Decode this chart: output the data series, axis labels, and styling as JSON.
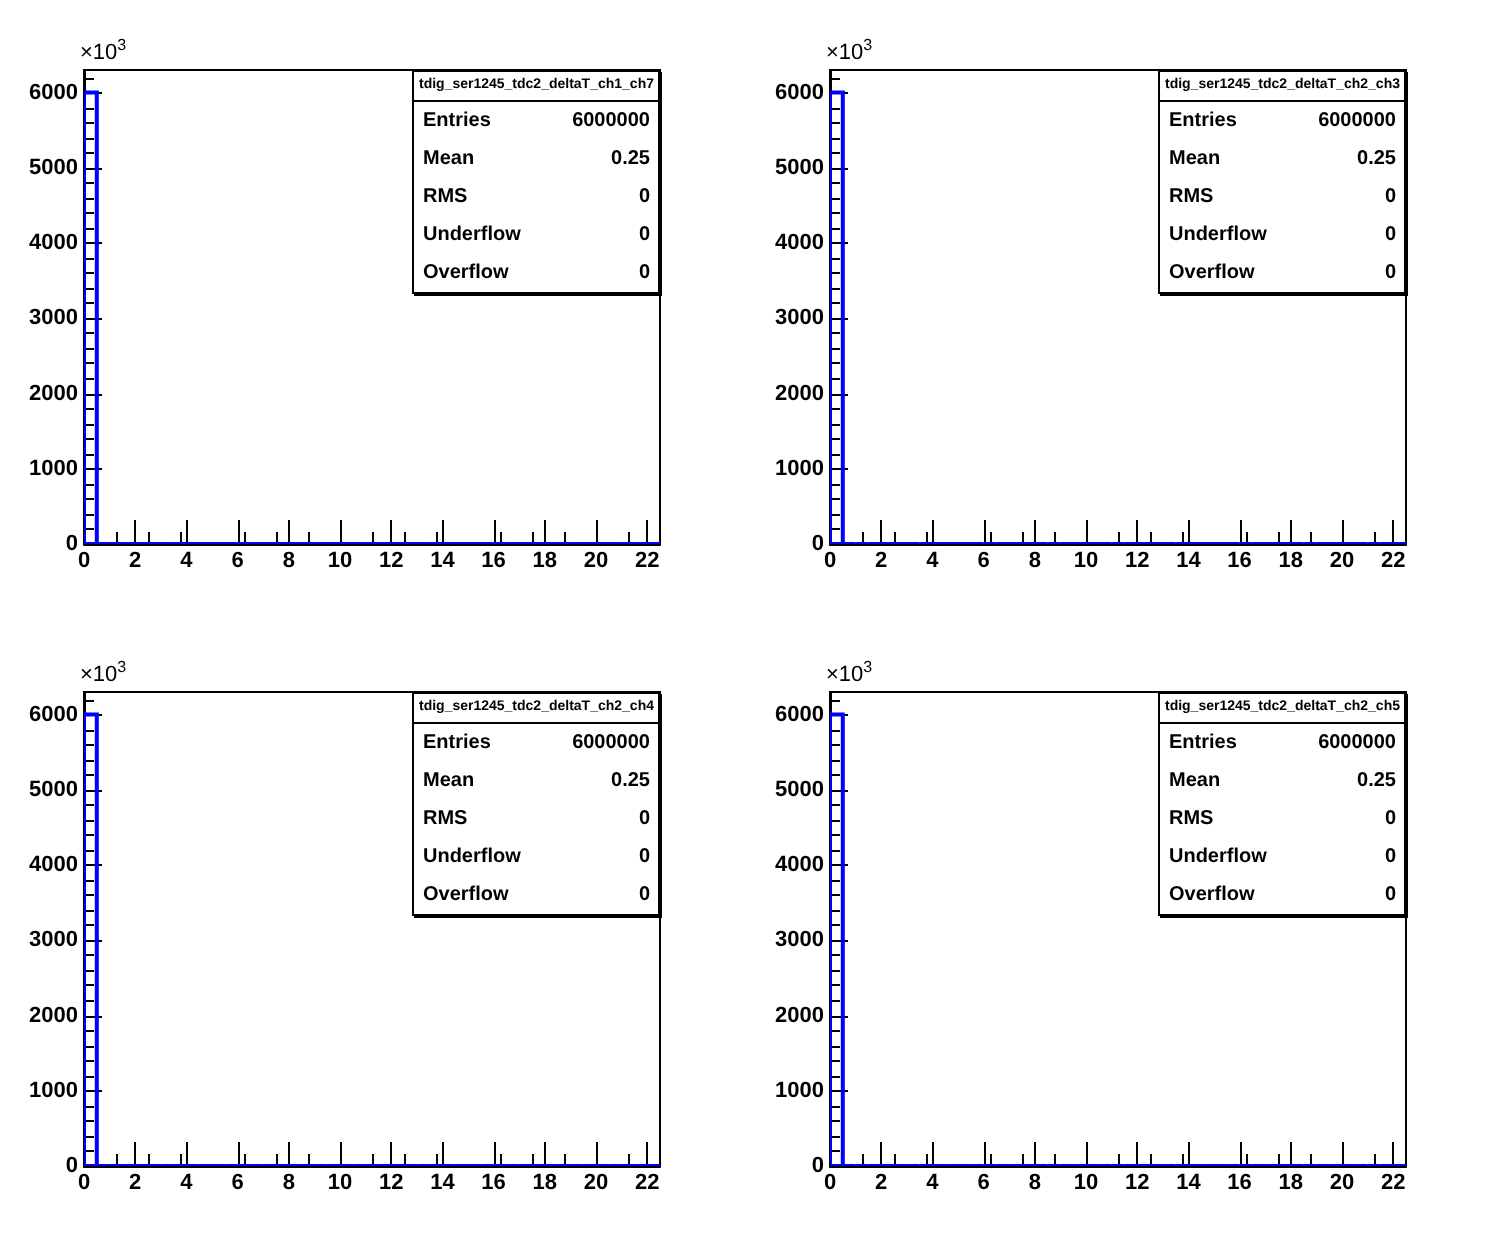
{
  "chart_data": [
    {
      "type": "histogram",
      "title": "tdig_ser1245_tdc2_deltaT_ch1_ch7",
      "annotations": [
        "×10$^{3}$",
        "Entries",
        "6000000",
        "Mean",
        "0.25",
        "RMS",
        "0",
        "Underflow",
        "0",
        "Overflow",
        "0"
      ],
      "bins": [
        0,
        0.5,
        1,
        1.5,
        2,
        2.5,
        3,
        3.5,
        4,
        4.5,
        5,
        5.5,
        6,
        6.5,
        7,
        7.5,
        8,
        8.5,
        9,
        9.5,
        10,
        10.5,
        11,
        11.5,
        12,
        12.5,
        13,
        13.5,
        14,
        14.5,
        15,
        15.5,
        16,
        16.5,
        17,
        17.5,
        18,
        18.5,
        19,
        19.5,
        20,
        20.5,
        21,
        21.5,
        22,
        22.5
      ],
      "values": [
        6000,
        0,
        0,
        0,
        0,
        0,
        0,
        0,
        0,
        0,
        0,
        0,
        0,
        0,
        0,
        0,
        0,
        0,
        0,
        0,
        0,
        0,
        0,
        0,
        0,
        0,
        0,
        0,
        0,
        0,
        0,
        0,
        0,
        0,
        0,
        0,
        0,
        0,
        0,
        0,
        0,
        0,
        0,
        0,
        0
      ],
      "color": "#0000ff",
      "xlim": [
        0,
        22.5
      ],
      "xticks": [
        0,
        2,
        4,
        6,
        8,
        10,
        12,
        14,
        16,
        18,
        20,
        22
      ],
      "ylim": [
        0,
        6300
      ],
      "yticks": [
        0,
        1000,
        2000,
        3000,
        4000,
        5000,
        6000
      ]
    },
    {
      "type": "histogram",
      "title": "tdig_ser1245_tdc2_deltaT_ch2_ch3",
      "annotations": [
        "×10$^{3}$",
        "Entries",
        "6000000",
        "Mean",
        "0.25",
        "RMS",
        "0",
        "Underflow",
        "0",
        "Overflow",
        "0"
      ],
      "bins": [
        0,
        0.5,
        1,
        1.5,
        2,
        2.5,
        3,
        3.5,
        4,
        4.5,
        5,
        5.5,
        6,
        6.5,
        7,
        7.5,
        8,
        8.5,
        9,
        9.5,
        10,
        10.5,
        11,
        11.5,
        12,
        12.5,
        13,
        13.5,
        14,
        14.5,
        15,
        15.5,
        16,
        16.5,
        17,
        17.5,
        18,
        18.5,
        19,
        19.5,
        20,
        20.5,
        21,
        21.5,
        22,
        22.5
      ],
      "values": [
        6000,
        0,
        0,
        0,
        0,
        0,
        0,
        0,
        0,
        0,
        0,
        0,
        0,
        0,
        0,
        0,
        0,
        0,
        0,
        0,
        0,
        0,
        0,
        0,
        0,
        0,
        0,
        0,
        0,
        0,
        0,
        0,
        0,
        0,
        0,
        0,
        0,
        0,
        0,
        0,
        0,
        0,
        0,
        0,
        0
      ],
      "color": "#0000ff",
      "xlim": [
        0,
        22.5
      ],
      "xticks": [
        0,
        2,
        4,
        6,
        8,
        10,
        12,
        14,
        16,
        18,
        20,
        22
      ],
      "ylim": [
        0,
        6300
      ],
      "yticks": [
        0,
        1000,
        2000,
        3000,
        4000,
        5000,
        6000
      ]
    },
    {
      "type": "histogram",
      "title": "tdig_ser1245_tdc2_deltaT_ch2_ch4",
      "annotations": [
        "×10$^{3}$",
        "Entries",
        "6000000",
        "Mean",
        "0.25",
        "RMS",
        "0",
        "Underflow",
        "0",
        "Overflow",
        "0"
      ],
      "bins": [
        0,
        0.5,
        1,
        1.5,
        2,
        2.5,
        3,
        3.5,
        4,
        4.5,
        5,
        5.5,
        6,
        6.5,
        7,
        7.5,
        8,
        8.5,
        9,
        9.5,
        10,
        10.5,
        11,
        11.5,
        12,
        12.5,
        13,
        13.5,
        14,
        14.5,
        15,
        15.5,
        16,
        16.5,
        17,
        17.5,
        18,
        18.5,
        19,
        19.5,
        20,
        20.5,
        21,
        21.5,
        22,
        22.5
      ],
      "values": [
        6000,
        0,
        0,
        0,
        0,
        0,
        0,
        0,
        0,
        0,
        0,
        0,
        0,
        0,
        0,
        0,
        0,
        0,
        0,
        0,
        0,
        0,
        0,
        0,
        0,
        0,
        0,
        0,
        0,
        0,
        0,
        0,
        0,
        0,
        0,
        0,
        0,
        0,
        0,
        0,
        0,
        0,
        0,
        0,
        0
      ],
      "color": "#0000ff",
      "xlim": [
        0,
        22.5
      ],
      "xticks": [
        0,
        2,
        4,
        6,
        8,
        10,
        12,
        14,
        16,
        18,
        20,
        22
      ],
      "ylim": [
        0,
        6300
      ],
      "yticks": [
        0,
        1000,
        2000,
        3000,
        4000,
        5000,
        6000
      ]
    },
    {
      "type": "histogram",
      "title": "tdig_ser1245_tdc2_deltaT_ch2_ch5",
      "annotations": [
        "×10$^{3}$",
        "Entries",
        "6000000",
        "Mean",
        "0.25",
        "RMS",
        "0",
        "Underflow",
        "0",
        "Overflow",
        "0"
      ],
      "bins": [
        0,
        0.5,
        1,
        1.5,
        2,
        2.5,
        3,
        3.5,
        4,
        4.5,
        5,
        5.5,
        6,
        6.5,
        7,
        7.5,
        8,
        8.5,
        9,
        9.5,
        10,
        10.5,
        11,
        11.5,
        12,
        12.5,
        13,
        13.5,
        14,
        14.5,
        15,
        15.5,
        16,
        16.5,
        17,
        17.5,
        18,
        18.5,
        19,
        19.5,
        20,
        20.5,
        21,
        21.5,
        22,
        22.5
      ],
      "values": [
        6000,
        0,
        0,
        0,
        0,
        0,
        0,
        0,
        0,
        0,
        0,
        0,
        0,
        0,
        0,
        0,
        0,
        0,
        0,
        0,
        0,
        0,
        0,
        0,
        0,
        0,
        0,
        0,
        0,
        0,
        0,
        0,
        0,
        0,
        0,
        0,
        0,
        0,
        0,
        0,
        0,
        0,
        0,
        0,
        0
      ],
      "color": "#0000ff",
      "xlim": [
        0,
        22.5
      ],
      "xticks": [
        0,
        2,
        4,
        6,
        8,
        10,
        12,
        14,
        16,
        18,
        20,
        22
      ],
      "ylim": [
        0,
        6300
      ],
      "yticks": [
        0,
        1000,
        2000,
        3000,
        4000,
        5000,
        6000
      ]
    }
  ]
}
